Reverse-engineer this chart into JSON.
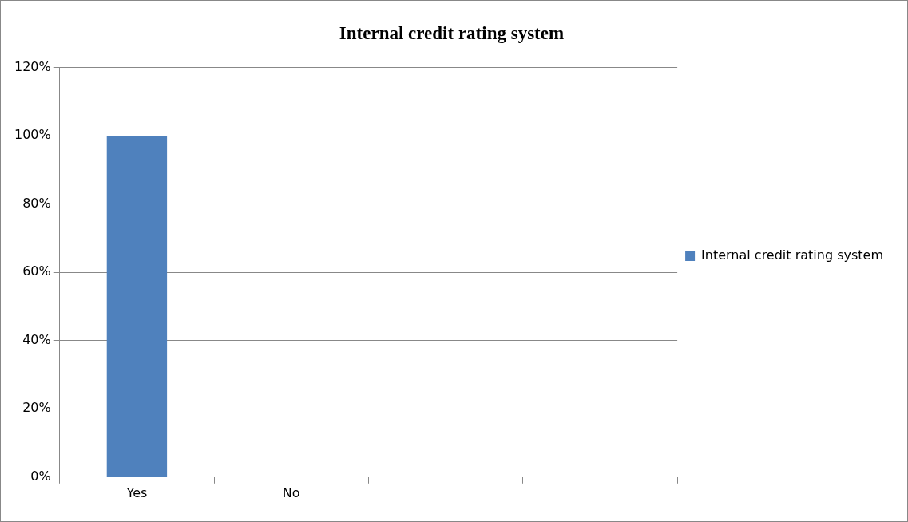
{
  "chart_data": {
    "type": "bar",
    "title": "Internal credit rating system",
    "categories": [
      "Yes",
      "No",
      null,
      null
    ],
    "series": [
      {
        "name": "Internal credit rating system",
        "color": "#4f81bd",
        "values": [
          100,
          0,
          null,
          null
        ]
      }
    ],
    "ylim": [
      0,
      120
    ],
    "yticks": [
      {
        "value": 0,
        "label": "0%"
      },
      {
        "value": 20,
        "label": "20%"
      },
      {
        "value": 40,
        "label": "40%"
      },
      {
        "value": 60,
        "label": "60%"
      },
      {
        "value": 80,
        "label": "80%"
      },
      {
        "value": 100,
        "label": "100%"
      },
      {
        "value": 120,
        "label": "120%"
      }
    ],
    "grid": "y",
    "legend": "right"
  }
}
